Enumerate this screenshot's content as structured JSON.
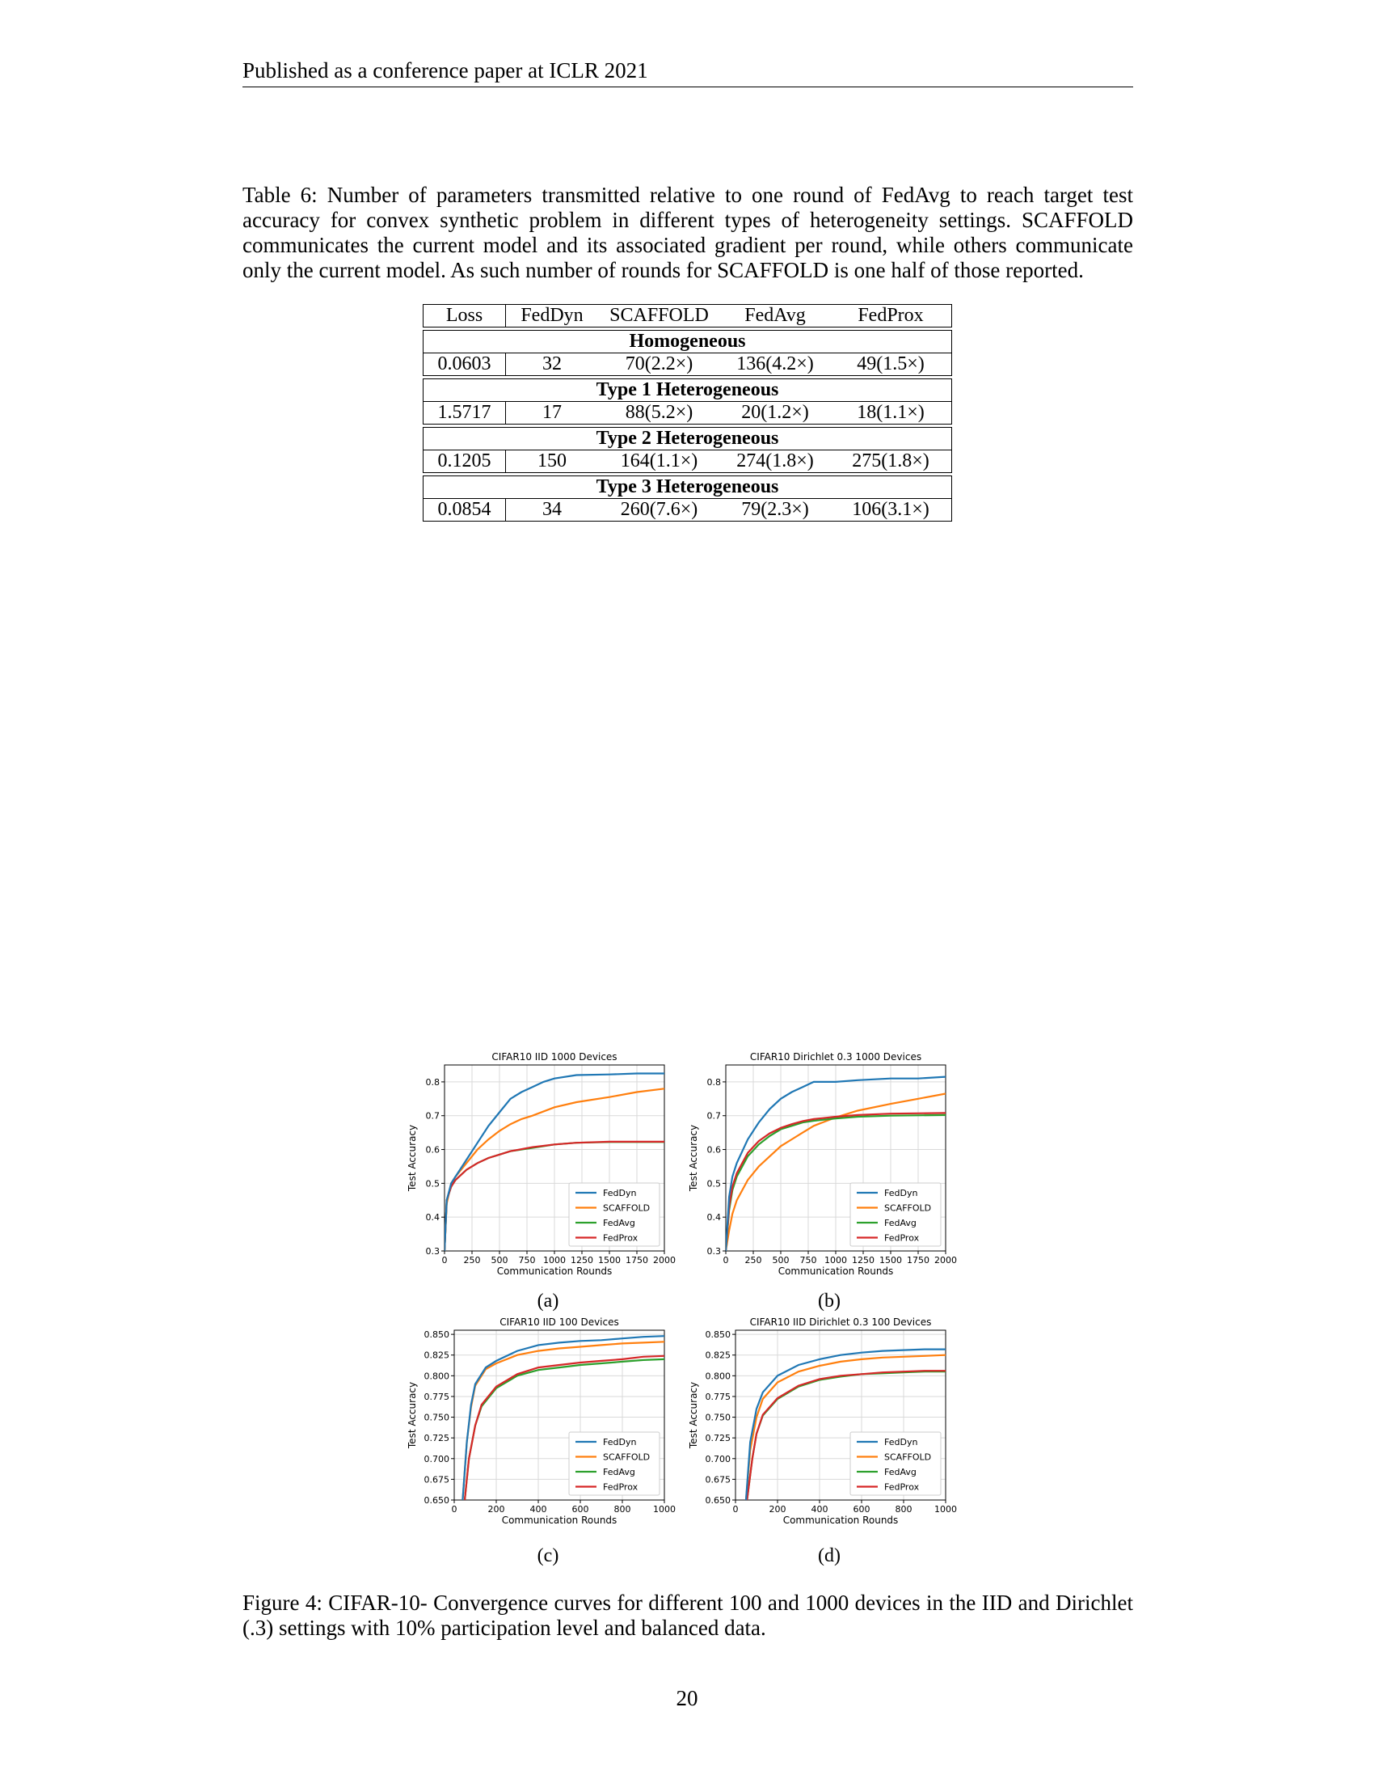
{
  "header": "Published as a conference paper at ICLR 2021",
  "table": {
    "caption": "Table 6: Number of parameters transmitted relative to one round of FedAvg to reach target test accuracy for convex synthetic problem in different types of heterogeneity settings. SCAFFOLD communicates the current model and its associated gradient per round, while others communicate only the current model. As such number of rounds for SCAFFOLD is one half of those reported.",
    "columns": [
      "Loss",
      "FedDyn",
      "SCAFFOLD",
      "FedAvg",
      "FedProx"
    ],
    "groups": [
      {
        "name": "Homogeneous",
        "row": [
          "0.0603",
          "32",
          "70(2.2×)",
          "136(4.2×)",
          "49(1.5×)"
        ]
      },
      {
        "name": "Type 1 Heterogeneous",
        "row": [
          "1.5717",
          "17",
          "88(5.2×)",
          "20(1.2×)",
          "18(1.1×)"
        ]
      },
      {
        "name": "Type 2 Heterogeneous",
        "row": [
          "0.1205",
          "150",
          "164(1.1×)",
          "274(1.8×)",
          "275(1.8×)"
        ]
      },
      {
        "name": "Type 3 Heterogeneous",
        "row": [
          "0.0854",
          "34",
          "260(7.6×)",
          "79(2.3×)",
          "106(3.1×)"
        ]
      }
    ]
  },
  "figure": {
    "caption": "Figure 4: CIFAR-10- Convergence curves for different 100 and 1000 devices in the IID and Dirichlet (.3) settings with 10% participation level and balanced data.",
    "sublabels": [
      "(a)",
      "(b)",
      "(c)",
      "(d)"
    ]
  },
  "colors": {
    "FedDyn": "#1f77b4",
    "SCAFFOLD": "#ff7f0e",
    "FedAvg": "#2ca02c",
    "FedProx": "#d62728"
  },
  "chart_data": [
    {
      "type": "line",
      "title": "CIFAR10 IID 1000 Devices",
      "xlabel": "Communication Rounds",
      "ylabel": "Test Accuracy",
      "xlim": [
        0,
        2000
      ],
      "ylim": [
        0.3,
        0.85
      ],
      "xticks": [
        "0",
        "250",
        "500",
        "750",
        "1000",
        "1250",
        "1500",
        "1750",
        "2000"
      ],
      "yticks": [
        "0.3",
        "0.4",
        "0.5",
        "0.6",
        "0.7",
        "0.8"
      ],
      "ytick_values": [
        0.3,
        0.4,
        0.5,
        0.6,
        0.7,
        0.8
      ],
      "xtick_values": [
        0,
        250,
        500,
        750,
        1000,
        1250,
        1500,
        1750,
        2000
      ],
      "grid": true,
      "legend": "lower-right",
      "series": [
        {
          "name": "FedDyn",
          "x": [
            0,
            20,
            60,
            100,
            200,
            300,
            400,
            500,
            600,
            700,
            800,
            900,
            1000,
            1200,
            1500,
            1750,
            2000
          ],
          "y": [
            0.3,
            0.45,
            0.5,
            0.52,
            0.57,
            0.62,
            0.67,
            0.71,
            0.75,
            0.77,
            0.785,
            0.8,
            0.81,
            0.82,
            0.822,
            0.825,
            0.825
          ]
        },
        {
          "name": "SCAFFOLD",
          "x": [
            0,
            20,
            60,
            100,
            200,
            300,
            400,
            500,
            600,
            700,
            800,
            1000,
            1200,
            1500,
            1750,
            2000
          ],
          "y": [
            0.3,
            0.44,
            0.5,
            0.52,
            0.56,
            0.6,
            0.63,
            0.655,
            0.675,
            0.69,
            0.7,
            0.725,
            0.74,
            0.755,
            0.77,
            0.78
          ]
        },
        {
          "name": "FedAvg",
          "x": [
            0,
            20,
            60,
            100,
            200,
            300,
            400,
            500,
            600,
            800,
            1000,
            1200,
            1500,
            2000
          ],
          "y": [
            0.3,
            0.45,
            0.49,
            0.51,
            0.54,
            0.56,
            0.575,
            0.585,
            0.595,
            0.605,
            0.615,
            0.62,
            0.622,
            0.622
          ]
        },
        {
          "name": "FedProx",
          "x": [
            0,
            20,
            60,
            100,
            200,
            300,
            400,
            500,
            600,
            800,
            1000,
            1200,
            1500,
            2000
          ],
          "y": [
            0.3,
            0.45,
            0.49,
            0.51,
            0.54,
            0.56,
            0.575,
            0.585,
            0.595,
            0.607,
            0.615,
            0.62,
            0.623,
            0.623
          ]
        }
      ]
    },
    {
      "type": "line",
      "title": "CIFAR10 Dirichlet 0.3 1000 Devices",
      "xlabel": "Communication Rounds",
      "ylabel": "Test Accuracy",
      "xlim": [
        0,
        2000
      ],
      "ylim": [
        0.3,
        0.85
      ],
      "xticks": [
        "0",
        "250",
        "500",
        "750",
        "1000",
        "1250",
        "1500",
        "1750",
        "2000"
      ],
      "yticks": [
        "0.3",
        "0.4",
        "0.5",
        "0.6",
        "0.7",
        "0.8"
      ],
      "ytick_values": [
        0.3,
        0.4,
        0.5,
        0.6,
        0.7,
        0.8
      ],
      "xtick_values": [
        0,
        250,
        500,
        750,
        1000,
        1250,
        1500,
        1750,
        2000
      ],
      "grid": true,
      "legend": "lower-right",
      "series": [
        {
          "name": "FedDyn",
          "x": [
            0,
            30,
            60,
            100,
            200,
            300,
            400,
            500,
            600,
            700,
            800,
            1000,
            1200,
            1500,
            1750,
            2000
          ],
          "y": [
            0.3,
            0.46,
            0.52,
            0.56,
            0.63,
            0.68,
            0.72,
            0.75,
            0.77,
            0.785,
            0.8,
            0.8,
            0.805,
            0.81,
            0.81,
            0.815
          ]
        },
        {
          "name": "SCAFFOLD",
          "x": [
            0,
            30,
            60,
            100,
            200,
            300,
            400,
            500,
            600,
            700,
            800,
            1000,
            1200,
            1500,
            1750,
            2000
          ],
          "y": [
            0.3,
            0.36,
            0.41,
            0.45,
            0.51,
            0.55,
            0.58,
            0.61,
            0.63,
            0.65,
            0.67,
            0.695,
            0.715,
            0.735,
            0.75,
            0.765
          ]
        },
        {
          "name": "FedAvg",
          "x": [
            0,
            30,
            60,
            100,
            200,
            300,
            400,
            500,
            600,
            700,
            800,
            1000,
            1200,
            1500,
            2000
          ],
          "y": [
            0.3,
            0.42,
            0.48,
            0.52,
            0.58,
            0.615,
            0.64,
            0.66,
            0.67,
            0.68,
            0.685,
            0.692,
            0.697,
            0.7,
            0.702
          ]
        },
        {
          "name": "FedProx",
          "x": [
            0,
            30,
            60,
            100,
            200,
            300,
            400,
            500,
            600,
            700,
            800,
            1000,
            1200,
            1500,
            2000
          ],
          "y": [
            0.3,
            0.43,
            0.49,
            0.53,
            0.59,
            0.625,
            0.648,
            0.664,
            0.675,
            0.684,
            0.69,
            0.697,
            0.702,
            0.706,
            0.708
          ]
        }
      ]
    },
    {
      "type": "line",
      "title": "CIFAR10 IID 100 Devices",
      "xlabel": "Communication Rounds",
      "ylabel": "Test Accuracy",
      "xlim": [
        0,
        1000
      ],
      "ylim": [
        0.65,
        0.855
      ],
      "xticks": [
        "0",
        "200",
        "400",
        "600",
        "800",
        "1000"
      ],
      "yticks": [
        "0.650",
        "0.675",
        "0.700",
        "0.725",
        "0.750",
        "0.775",
        "0.800",
        "0.825",
        "0.850"
      ],
      "ytick_values": [
        0.65,
        0.675,
        0.7,
        0.725,
        0.75,
        0.775,
        0.8,
        0.825,
        0.85
      ],
      "xtick_values": [
        0,
        200,
        400,
        600,
        800,
        1000
      ],
      "grid": true,
      "legend": "lower-right",
      "series": [
        {
          "name": "FedDyn",
          "x": [
            40,
            60,
            80,
            100,
            150,
            200,
            300,
            400,
            500,
            600,
            700,
            800,
            900,
            1000
          ],
          "y": [
            0.65,
            0.72,
            0.765,
            0.79,
            0.81,
            0.818,
            0.83,
            0.837,
            0.84,
            0.842,
            0.843,
            0.845,
            0.847,
            0.848
          ]
        },
        {
          "name": "SCAFFOLD",
          "x": [
            40,
            60,
            80,
            100,
            150,
            200,
            300,
            400,
            500,
            600,
            700,
            800,
            900,
            1000
          ],
          "y": [
            0.65,
            0.72,
            0.762,
            0.788,
            0.808,
            0.815,
            0.825,
            0.83,
            0.833,
            0.835,
            0.837,
            0.839,
            0.84,
            0.841
          ]
        },
        {
          "name": "FedAvg",
          "x": [
            50,
            70,
            100,
            130,
            200,
            300,
            400,
            500,
            600,
            700,
            800,
            900,
            1000
          ],
          "y": [
            0.65,
            0.7,
            0.74,
            0.763,
            0.785,
            0.8,
            0.807,
            0.81,
            0.813,
            0.815,
            0.817,
            0.819,
            0.82
          ]
        },
        {
          "name": "FedProx",
          "x": [
            50,
            70,
            100,
            130,
            200,
            300,
            400,
            500,
            600,
            700,
            800,
            900,
            1000
          ],
          "y": [
            0.65,
            0.7,
            0.74,
            0.765,
            0.787,
            0.802,
            0.81,
            0.813,
            0.816,
            0.818,
            0.82,
            0.823,
            0.824
          ]
        }
      ]
    },
    {
      "type": "line",
      "title": "CIFAR10 IID Dirichlet 0.3 100 Devices",
      "xlabel": "Communication Rounds",
      "ylabel": "Test Accuracy",
      "xlim": [
        0,
        1000
      ],
      "ylim": [
        0.65,
        0.855
      ],
      "xticks": [
        "0",
        "200",
        "400",
        "600",
        "800",
        "1000"
      ],
      "yticks": [
        "0.650",
        "0.675",
        "0.700",
        "0.725",
        "0.750",
        "0.775",
        "0.800",
        "0.825",
        "0.850"
      ],
      "ytick_values": [
        0.65,
        0.675,
        0.7,
        0.725,
        0.75,
        0.775,
        0.8,
        0.825,
        0.85
      ],
      "xtick_values": [
        0,
        200,
        400,
        600,
        800,
        1000
      ],
      "grid": true,
      "legend": "lower-right",
      "series": [
        {
          "name": "FedDyn",
          "x": [
            50,
            70,
            100,
            130,
            200,
            300,
            400,
            500,
            600,
            700,
            800,
            900,
            1000
          ],
          "y": [
            0.65,
            0.72,
            0.76,
            0.78,
            0.8,
            0.813,
            0.82,
            0.825,
            0.828,
            0.83,
            0.831,
            0.832,
            0.832
          ]
        },
        {
          "name": "SCAFFOLD",
          "x": [
            50,
            70,
            100,
            130,
            200,
            300,
            400,
            500,
            600,
            700,
            800,
            900,
            1000
          ],
          "y": [
            0.65,
            0.71,
            0.75,
            0.772,
            0.792,
            0.805,
            0.812,
            0.817,
            0.82,
            0.822,
            0.823,
            0.824,
            0.825
          ]
        },
        {
          "name": "FedAvg",
          "x": [
            55,
            80,
            100,
            130,
            200,
            300,
            400,
            500,
            600,
            700,
            800,
            900,
            1000
          ],
          "y": [
            0.65,
            0.7,
            0.73,
            0.752,
            0.772,
            0.787,
            0.795,
            0.799,
            0.802,
            0.803,
            0.804,
            0.805,
            0.805
          ]
        },
        {
          "name": "FedProx",
          "x": [
            55,
            80,
            100,
            130,
            200,
            300,
            400,
            500,
            600,
            700,
            800,
            900,
            1000
          ],
          "y": [
            0.65,
            0.7,
            0.73,
            0.753,
            0.773,
            0.788,
            0.796,
            0.8,
            0.802,
            0.804,
            0.805,
            0.806,
            0.806
          ]
        }
      ]
    }
  ]
}
